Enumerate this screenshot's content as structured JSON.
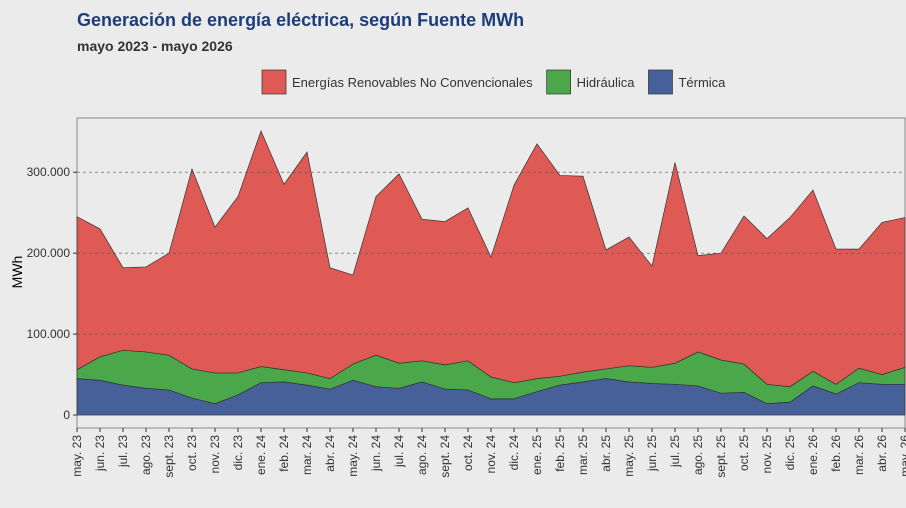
{
  "chart_data": {
    "type": "stacked-area",
    "title": "Generación de energía eléctrica, según Fuente MWh",
    "subtitle": "mayo 2023 - mayo 2026",
    "y_label": "MWh",
    "categories": [
      "may. 23",
      "jun. 23",
      "jul. 23",
      "ago. 23",
      "sept. 23",
      "oct. 23",
      "nov. 23",
      "dic. 23",
      "ene. 24",
      "feb. 24",
      "mar. 24",
      "abr. 24",
      "may. 24",
      "jun. 24",
      "jul. 24",
      "ago. 24",
      "sept. 24",
      "oct. 24",
      "nov. 24",
      "dic. 24",
      "ene. 25",
      "feb. 25",
      "mar. 25",
      "abr. 25",
      "may. 25",
      "jun. 25",
      "jul. 25",
      "ago. 25",
      "sept. 25",
      "oct. 25",
      "nov. 25",
      "dic. 25",
      "ene. 26",
      "feb. 26",
      "mar. 26",
      "abr. 26",
      "may. 26"
    ],
    "series": [
      {
        "name": "Energías Renovables No Convencionales",
        "color": "#e05a55",
        "values": [
          189000,
          158000,
          102000,
          105000,
          126000,
          247000,
          180000,
          218000,
          291000,
          229000,
          273000,
          137000,
          110000,
          196000,
          234000,
          175000,
          177000,
          189000,
          148000,
          244000,
          290000,
          248000,
          242000,
          147000,
          159000,
          125000,
          248000,
          119000,
          132000,
          183000,
          180000,
          209000,
          224000,
          167000,
          147000,
          188000,
          185000
        ]
      },
      {
        "name": "Hidráulica",
        "color": "#4aa84a",
        "values": [
          11000,
          29000,
          43000,
          45000,
          43000,
          36000,
          38000,
          27000,
          20000,
          15000,
          15000,
          13000,
          20000,
          39000,
          31000,
          26000,
          30000,
          36000,
          27000,
          20000,
          16000,
          11000,
          12000,
          12000,
          20000,
          20000,
          26000,
          42000,
          41000,
          35000,
          24000,
          19000,
          18000,
          12000,
          18000,
          12000,
          21000
        ]
      },
      {
        "name": "Térmica",
        "color": "#46609a",
        "values": [
          45000,
          43000,
          37000,
          33000,
          31000,
          21000,
          14000,
          25000,
          40000,
          41000,
          37000,
          32000,
          43000,
          35000,
          33000,
          41000,
          32000,
          31000,
          20000,
          20000,
          29000,
          37000,
          41000,
          45000,
          41000,
          39000,
          38000,
          36000,
          27000,
          28000,
          14000,
          16000,
          36000,
          26000,
          40000,
          38000,
          38000
        ]
      }
    ],
    "ylim": [
      -16000,
      367000
    ],
    "yticks": [
      0,
      {
        "value": 100000,
        "label": "100.000"
      },
      {
        "value": 200000,
        "label": "200.000"
      },
      {
        "value": 300000,
        "label": "300.000"
      }
    ],
    "grid": true
  }
}
